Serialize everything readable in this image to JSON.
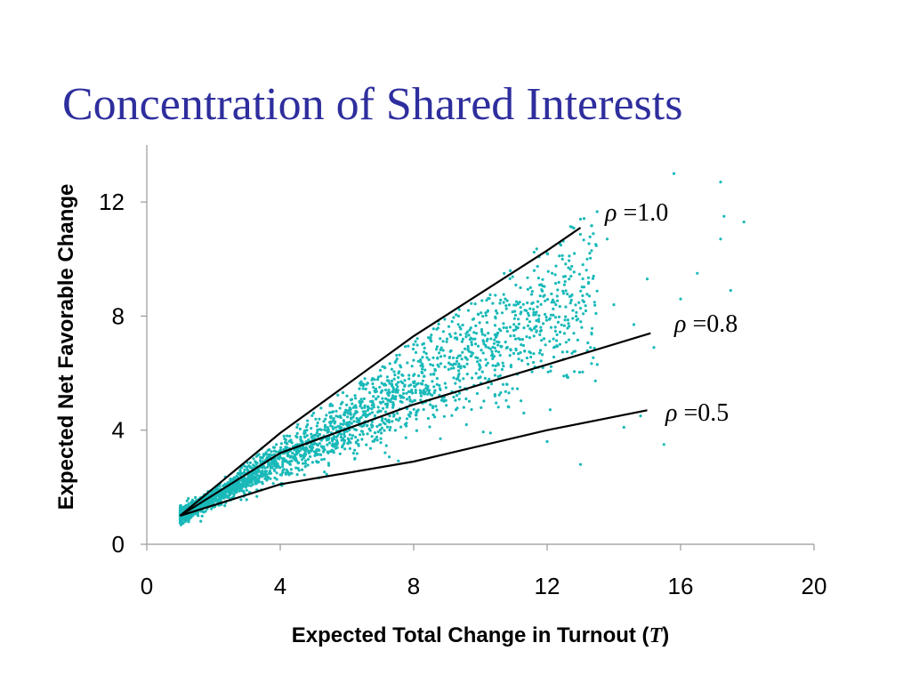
{
  "slide": {
    "title": "Concentration of Shared Interests"
  },
  "colors": {
    "points": "#1ab9b9",
    "lines": "#000000",
    "title": "#2e2e9e"
  },
  "chart_data": {
    "type": "scatter",
    "title": "",
    "xlabel": "Expected Total Change in Turnout",
    "xlabel_symbol": "T",
    "ylabel": "Expected Net Favorable Change",
    "xlim": [
      0,
      20
    ],
    "ylim": [
      0,
      14
    ],
    "xticks": [
      0,
      4,
      8,
      12,
      16,
      20
    ],
    "yticks": [
      0,
      4,
      8,
      12
    ],
    "grid": false,
    "legend": "none",
    "scatter_series": {
      "color": "#1ab9b9",
      "points": [
        [
          1.0,
          1.0
        ],
        [
          1.2,
          1.1
        ],
        [
          1.3,
          1.2
        ],
        [
          1.5,
          1.3
        ],
        [
          1.6,
          1.5
        ],
        [
          1.8,
          1.6
        ],
        [
          2.0,
          1.8
        ],
        [
          2.2,
          1.9
        ],
        [
          2.4,
          2.1
        ],
        [
          2.6,
          2.3
        ],
        [
          2.8,
          2.6
        ],
        [
          3.0,
          2.7
        ],
        [
          3.2,
          3.0
        ],
        [
          3.5,
          3.1
        ],
        [
          3.8,
          3.4
        ],
        [
          4.0,
          3.3
        ],
        [
          4.2,
          3.8
        ],
        [
          4.5,
          4.1
        ],
        [
          4.8,
          4.0
        ],
        [
          5.0,
          4.6
        ],
        [
          5.2,
          3.7
        ],
        [
          5.5,
          4.9
        ],
        [
          5.8,
          4.5
        ],
        [
          6.0,
          5.2
        ],
        [
          6.3,
          4.3
        ],
        [
          6.5,
          5.6
        ],
        [
          6.8,
          4.9
        ],
        [
          7.0,
          6.1
        ],
        [
          7.3,
          5.0
        ],
        [
          7.5,
          6.5
        ],
        [
          7.8,
          4.4
        ],
        [
          8.0,
          7.0
        ],
        [
          8.3,
          5.4
        ],
        [
          8.5,
          6.3
        ],
        [
          8.8,
          3.7
        ],
        [
          9.0,
          7.2
        ],
        [
          9.3,
          5.8
        ],
        [
          9.5,
          4.8
        ],
        [
          9.8,
          7.9
        ],
        [
          10.0,
          6.2
        ],
        [
          10.3,
          3.9
        ],
        [
          10.5,
          8.1
        ],
        [
          10.8,
          5.6
        ],
        [
          11.0,
          7.5
        ],
        [
          11.3,
          4.6
        ],
        [
          11.5,
          9.0
        ],
        [
          11.8,
          6.8
        ],
        [
          12.0,
          3.6
        ],
        [
          12.3,
          8.7
        ],
        [
          12.5,
          5.9
        ],
        [
          12.8,
          7.4
        ],
        [
          13.0,
          2.8
        ],
        [
          13.2,
          10.0
        ],
        [
          13.5,
          6.3
        ],
        [
          13.8,
          10.7
        ],
        [
          14.0,
          8.4
        ],
        [
          14.3,
          4.1
        ],
        [
          14.6,
          7.7
        ],
        [
          15.0,
          9.3
        ],
        [
          15.2,
          6.9
        ],
        [
          15.5,
          3.5
        ],
        [
          15.8,
          13.0
        ],
        [
          16.0,
          8.6
        ],
        [
          16.5,
          9.5
        ],
        [
          17.2,
          12.7
        ],
        [
          17.3,
          11.5
        ],
        [
          17.2,
          10.7
        ],
        [
          17.5,
          8.9
        ],
        [
          17.9,
          11.3
        ],
        [
          14.8,
          4.5
        ],
        [
          12.0,
          10.2
        ],
        [
          13.0,
          11.4
        ]
      ]
    },
    "fit_lines": [
      {
        "label": "ρ =1.0",
        "points": [
          [
            1,
            1.0
          ],
          [
            4,
            3.9
          ],
          [
            8,
            7.3
          ],
          [
            12,
            10.3
          ],
          [
            13,
            11.1
          ]
        ]
      },
      {
        "label": "ρ =0.8",
        "points": [
          [
            1,
            1.0
          ],
          [
            4,
            3.2
          ],
          [
            8,
            4.9
          ],
          [
            12,
            6.3
          ],
          [
            15.1,
            7.4
          ]
        ]
      },
      {
        "label": "ρ =0.5",
        "points": [
          [
            1,
            1.0
          ],
          [
            4,
            2.1
          ],
          [
            8,
            2.9
          ],
          [
            12,
            4.0
          ],
          [
            15,
            4.7
          ]
        ]
      }
    ]
  }
}
